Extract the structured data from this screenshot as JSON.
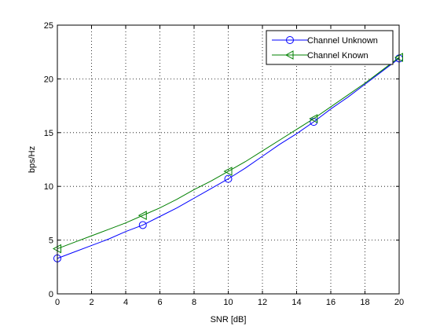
{
  "chart_data": {
    "type": "line",
    "xlabel": "SNR [dB]",
    "ylabel": "bps/Hz",
    "xlim": [
      0,
      20
    ],
    "ylim": [
      0,
      25
    ],
    "xticks": [
      0,
      2,
      4,
      6,
      8,
      10,
      12,
      14,
      16,
      18,
      20
    ],
    "yticks": [
      0,
      5,
      10,
      15,
      20,
      25
    ],
    "grid": true,
    "grid_style": "dotted",
    "legend_position": "top-right",
    "x": [
      0,
      5,
      10,
      15,
      20
    ],
    "series": [
      {
        "name": "Channel Unknown",
        "values": [
          3.3,
          6.4,
          10.7,
          16.0,
          21.9
        ],
        "color": "#0000ff",
        "marker": "circle",
        "curve_x": [
          0,
          1,
          2,
          3,
          4,
          5,
          6,
          7,
          8,
          9,
          10,
          11,
          12,
          13,
          14,
          15,
          16,
          17,
          18,
          19,
          20
        ],
        "curve_y": [
          3.3,
          3.9,
          4.5,
          5.1,
          5.8,
          6.4,
          7.2,
          8.0,
          8.9,
          9.8,
          10.7,
          11.7,
          12.8,
          13.9,
          14.9,
          16.0,
          17.2,
          18.3,
          19.5,
          20.7,
          21.9
        ]
      },
      {
        "name": "Channel Known",
        "values": [
          4.2,
          7.3,
          11.4,
          16.3,
          22.0
        ],
        "color": "#008000",
        "marker": "triangle-left",
        "curve_x": [
          0,
          1,
          2,
          3,
          4,
          5,
          6,
          7,
          8,
          9,
          10,
          11,
          12,
          13,
          14,
          15,
          16,
          17,
          18,
          19,
          20
        ],
        "curve_y": [
          4.2,
          4.8,
          5.4,
          6.0,
          6.6,
          7.3,
          8.0,
          8.8,
          9.7,
          10.5,
          11.4,
          12.3,
          13.3,
          14.3,
          15.3,
          16.3,
          17.4,
          18.5,
          19.6,
          20.8,
          22.0
        ]
      }
    ]
  }
}
